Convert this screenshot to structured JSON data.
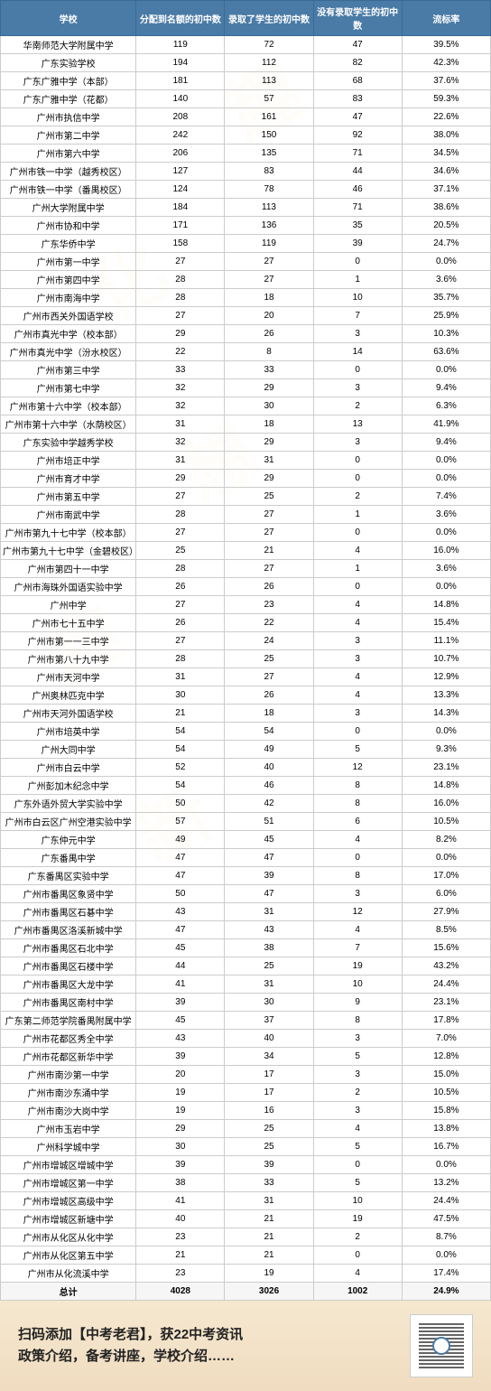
{
  "headers": [
    "学校",
    "分配到名额的初中数",
    "录取了学生的初中数",
    "没有录取学生的初中数",
    "流标率"
  ],
  "rows": [
    [
      "华南师范大学附属中学",
      "119",
      "72",
      "47",
      "39.5%"
    ],
    [
      "广东实验学校",
      "194",
      "112",
      "82",
      "42.3%"
    ],
    [
      "广东广雅中学（本部）",
      "181",
      "113",
      "68",
      "37.6%"
    ],
    [
      "广东广雅中学（花都）",
      "140",
      "57",
      "83",
      "59.3%"
    ],
    [
      "广州市执信中学",
      "208",
      "161",
      "47",
      "22.6%"
    ],
    [
      "广州市第二中学",
      "242",
      "150",
      "92",
      "38.0%"
    ],
    [
      "广州市第六中学",
      "206",
      "135",
      "71",
      "34.5%"
    ],
    [
      "广州市铁一中学（越秀校区）",
      "127",
      "83",
      "44",
      "34.6%"
    ],
    [
      "广州市铁一中学（番禺校区）",
      "124",
      "78",
      "46",
      "37.1%"
    ],
    [
      "广州大学附属中学",
      "184",
      "113",
      "71",
      "38.6%"
    ],
    [
      "广州市协和中学",
      "171",
      "136",
      "35",
      "20.5%"
    ],
    [
      "广东华侨中学",
      "158",
      "119",
      "39",
      "24.7%"
    ],
    [
      "广州市第一中学",
      "27",
      "27",
      "0",
      "0.0%"
    ],
    [
      "广州市第四中学",
      "28",
      "27",
      "1",
      "3.6%"
    ],
    [
      "广州市南海中学",
      "28",
      "18",
      "10",
      "35.7%"
    ],
    [
      "广州市西关外国语学校",
      "27",
      "20",
      "7",
      "25.9%"
    ],
    [
      "广州市真光中学（校本部）",
      "29",
      "26",
      "3",
      "10.3%"
    ],
    [
      "广州市真光中学（汾水校区）",
      "22",
      "8",
      "14",
      "63.6%"
    ],
    [
      "广州市第三中学",
      "33",
      "33",
      "0",
      "0.0%"
    ],
    [
      "广州市第七中学",
      "32",
      "29",
      "3",
      "9.4%"
    ],
    [
      "广州市第十六中学（校本部）",
      "32",
      "30",
      "2",
      "6.3%"
    ],
    [
      "广州市第十六中学（水荫校区）",
      "31",
      "18",
      "13",
      "41.9%"
    ],
    [
      "广东实验中学越秀学校",
      "32",
      "29",
      "3",
      "9.4%"
    ],
    [
      "广州市培正中学",
      "31",
      "31",
      "0",
      "0.0%"
    ],
    [
      "广州市育才中学",
      "29",
      "29",
      "0",
      "0.0%"
    ],
    [
      "广州市第五中学",
      "27",
      "25",
      "2",
      "7.4%"
    ],
    [
      "广州市南武中学",
      "28",
      "27",
      "1",
      "3.6%"
    ],
    [
      "广州市第九十七中学（校本部）",
      "27",
      "27",
      "0",
      "0.0%"
    ],
    [
      "广州市第九十七中学（金碧校区）",
      "25",
      "21",
      "4",
      "16.0%"
    ],
    [
      "广州市第四十一中学",
      "28",
      "27",
      "1",
      "3.6%"
    ],
    [
      "广州市海珠外国语实验中学",
      "26",
      "26",
      "0",
      "0.0%"
    ],
    [
      "广州中学",
      "27",
      "23",
      "4",
      "14.8%"
    ],
    [
      "广州市七十五中学",
      "26",
      "22",
      "4",
      "15.4%"
    ],
    [
      "广州市第一一三中学",
      "27",
      "24",
      "3",
      "11.1%"
    ],
    [
      "广州市第八十九中学",
      "28",
      "25",
      "3",
      "10.7%"
    ],
    [
      "广州市天河中学",
      "31",
      "27",
      "4",
      "12.9%"
    ],
    [
      "广州奥林匹克中学",
      "30",
      "26",
      "4",
      "13.3%"
    ],
    [
      "广州市天河外国语学校",
      "21",
      "18",
      "3",
      "14.3%"
    ],
    [
      "广州市培英中学",
      "54",
      "54",
      "0",
      "0.0%"
    ],
    [
      "广州大同中学",
      "54",
      "49",
      "5",
      "9.3%"
    ],
    [
      "广州市白云中学",
      "52",
      "40",
      "12",
      "23.1%"
    ],
    [
      "广州彭加木纪念中学",
      "54",
      "46",
      "8",
      "14.8%"
    ],
    [
      "广东外语外贸大学实验中学",
      "50",
      "42",
      "8",
      "16.0%"
    ],
    [
      "广州市白云区广州空港实验中学",
      "57",
      "51",
      "6",
      "10.5%"
    ],
    [
      "广东仲元中学",
      "49",
      "45",
      "4",
      "8.2%"
    ],
    [
      "广东番禺中学",
      "47",
      "47",
      "0",
      "0.0%"
    ],
    [
      "广东番禺区实验中学",
      "47",
      "39",
      "8",
      "17.0%"
    ],
    [
      "广州市番禺区象贤中学",
      "50",
      "47",
      "3",
      "6.0%"
    ],
    [
      "广州市番禺区石碁中学",
      "43",
      "31",
      "12",
      "27.9%"
    ],
    [
      "广州市番禺区洛溪新城中学",
      "47",
      "43",
      "4",
      "8.5%"
    ],
    [
      "广州市番禺区石北中学",
      "45",
      "38",
      "7",
      "15.6%"
    ],
    [
      "广州市番禺区石楼中学",
      "44",
      "25",
      "19",
      "43.2%"
    ],
    [
      "广州市番禺区大龙中学",
      "41",
      "31",
      "10",
      "24.4%"
    ],
    [
      "广州市番禺区南村中学",
      "39",
      "30",
      "9",
      "23.1%"
    ],
    [
      "广东第二师范学院番禺附属中学",
      "45",
      "37",
      "8",
      "17.8%"
    ],
    [
      "广州市花都区秀全中学",
      "43",
      "40",
      "3",
      "7.0%"
    ],
    [
      "广州市花都区新华中学",
      "39",
      "34",
      "5",
      "12.8%"
    ],
    [
      "广州市南沙第一中学",
      "20",
      "17",
      "3",
      "15.0%"
    ],
    [
      "广州市南沙东涌中学",
      "19",
      "17",
      "2",
      "10.5%"
    ],
    [
      "广州市南沙大岗中学",
      "19",
      "16",
      "3",
      "15.8%"
    ],
    [
      "广州市玉岩中学",
      "29",
      "25",
      "4",
      "13.8%"
    ],
    [
      "广州科学城中学",
      "30",
      "25",
      "5",
      "16.7%"
    ],
    [
      "广州市增城区增城中学",
      "39",
      "39",
      "0",
      "0.0%"
    ],
    [
      "广州市增城区第一中学",
      "38",
      "33",
      "5",
      "13.2%"
    ],
    [
      "广州市增城区高级中学",
      "41",
      "31",
      "10",
      "24.4%"
    ],
    [
      "广州市增城区新塘中学",
      "40",
      "21",
      "19",
      "47.5%"
    ],
    [
      "广州市从化区从化中学",
      "23",
      "21",
      "2",
      "8.7%"
    ],
    [
      "广州市从化区第五中学",
      "21",
      "21",
      "0",
      "0.0%"
    ],
    [
      "广州市从化流溪中学",
      "23",
      "19",
      "4",
      "17.4%"
    ]
  ],
  "total": [
    "总计",
    "4028",
    "3026",
    "1002",
    "24.9%"
  ],
  "footer": {
    "line1": "扫码添加【中考老君】，获22中考资讯",
    "line2": "政策介绍，备考讲座，学校介绍……"
  },
  "colors": {
    "header_bg": "#4a7ba6",
    "header_fg": "#ffffff",
    "border": "#cccccc",
    "footer_bg_top": "#f5e8d0",
    "footer_bg_bottom": "#f0dcc0",
    "watermark": "rgba(230,200,150,0.15)"
  }
}
